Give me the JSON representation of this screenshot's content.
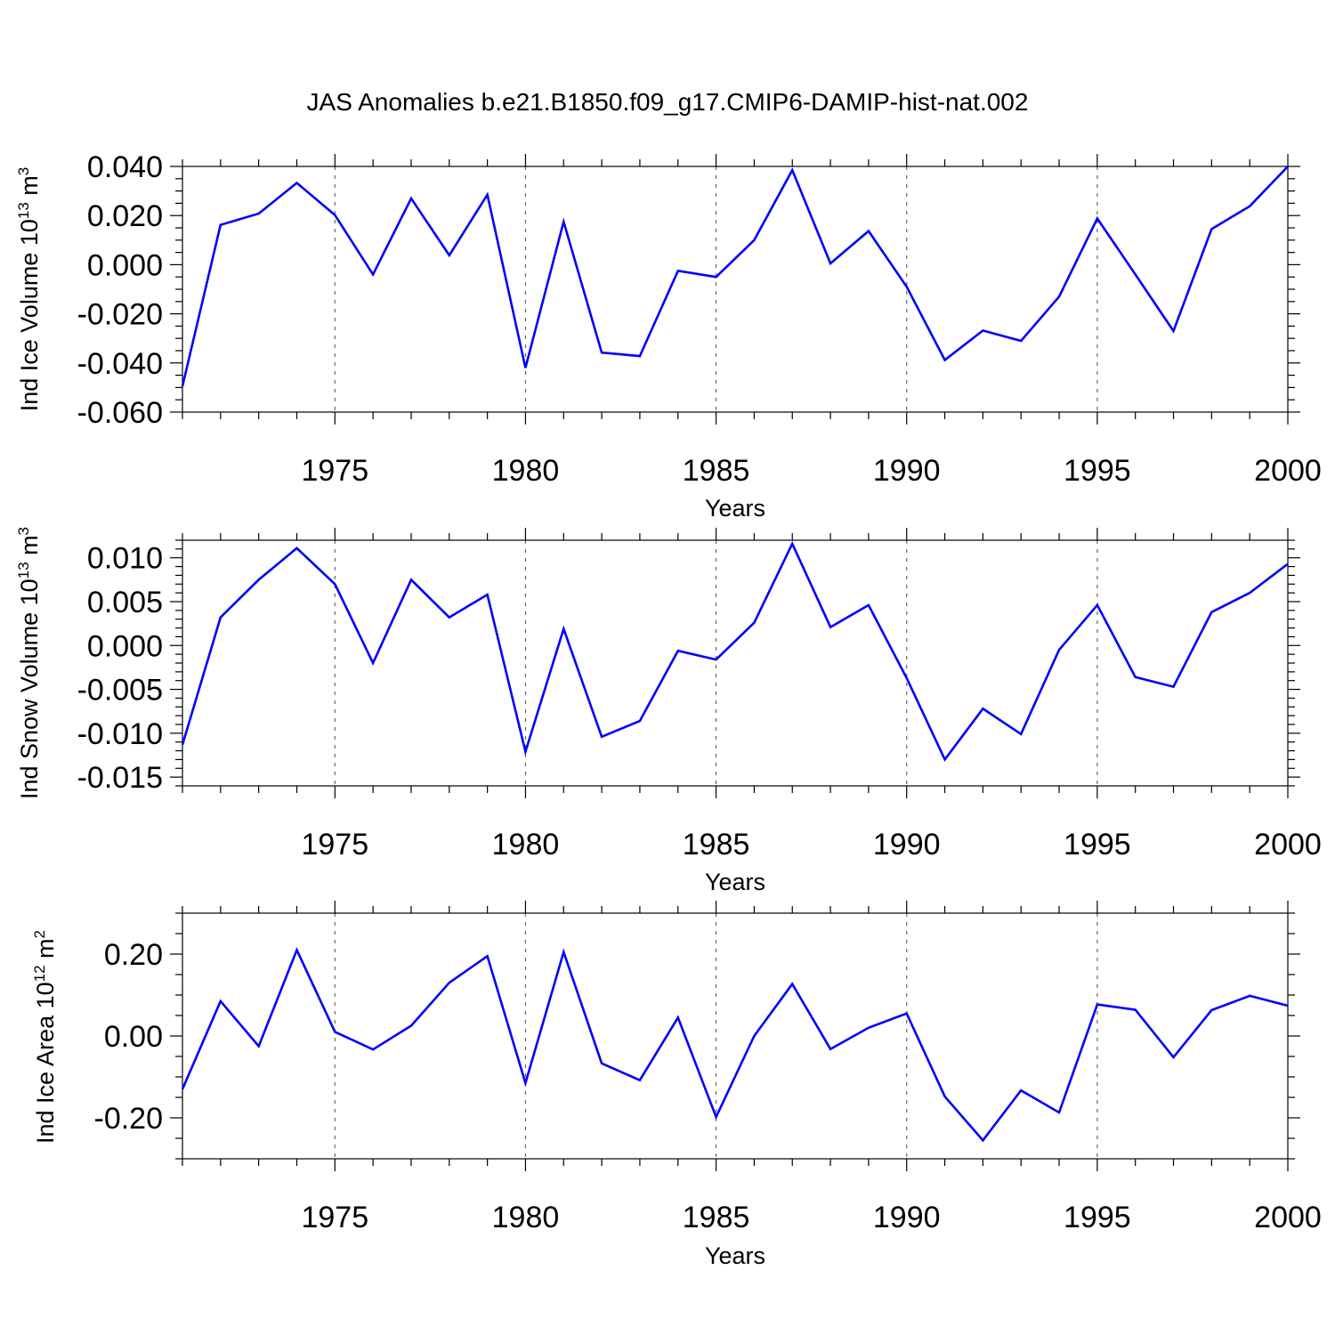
{
  "figure_title": "JAS Anomalies b.e21.B1850.f09_g17.CMIP6-DAMIP-hist-nat.002",
  "colors": {
    "line": "#0000ff",
    "grid": "#666666",
    "axis": "#000000"
  },
  "chart_data": [
    {
      "type": "line",
      "title": "",
      "ylabel": "Ind Ice Volume 10",
      "ylabel_exp": "13",
      "ylabel_unit": " m",
      "ylabel_unit_exp": "3",
      "xlabel": "Years",
      "xlim": [
        1971,
        2000
      ],
      "ylim": [
        -0.06,
        0.04
      ],
      "yticks": [
        -0.06,
        -0.04,
        -0.02,
        0.0,
        0.02,
        0.04
      ],
      "ytick_labels": [
        "-0.060",
        "-0.040",
        "-0.020",
        "0.000",
        "0.020",
        "0.040"
      ],
      "yminor_step": 0.005,
      "xticks": [
        1975,
        1980,
        1985,
        1990,
        1995,
        2000
      ],
      "xtick_labels": [
        "1975",
        "1980",
        "1985",
        "1990",
        "1995",
        "2000"
      ],
      "grid_x": [
        1975,
        1980,
        1985,
        1990,
        1995
      ],
      "x": [
        1971,
        1972,
        1973,
        1974,
        1975,
        1976,
        1977,
        1978,
        1979,
        1980,
        1981,
        1982,
        1983,
        1984,
        1985,
        1986,
        1987,
        1988,
        1989,
        1990,
        1991,
        1992,
        1993,
        1994,
        1995,
        1996,
        1997,
        1998,
        1999,
        2000
      ],
      "series": [
        {
          "name": "Ind Ice Volume",
          "values": [
            -0.0495,
            0.0162,
            0.0208,
            0.0333,
            0.0202,
            -0.004,
            0.027,
            0.0038,
            0.0285,
            -0.042,
            0.0175,
            -0.0358,
            -0.0372,
            -0.0025,
            -0.005,
            0.01,
            0.0385,
            0.0005,
            0.0137,
            -0.009,
            -0.0388,
            -0.0268,
            -0.031,
            -0.013,
            0.0188,
            -0.004,
            -0.027,
            0.0145,
            0.0238,
            0.04
          ]
        }
      ]
    },
    {
      "type": "line",
      "title": "",
      "ylabel": "Ind Snow Volume 10",
      "ylabel_exp": "13",
      "ylabel_unit": " m",
      "ylabel_unit_exp": "3",
      "xlabel": "Years",
      "xlim": [
        1971,
        2000
      ],
      "ylim": [
        -0.016,
        0.012
      ],
      "yticks": [
        -0.015,
        -0.01,
        -0.005,
        0.0,
        0.005,
        0.01
      ],
      "ytick_labels": [
        "-0.015",
        "-0.010",
        "-0.005",
        "0.000",
        "0.005",
        "0.010"
      ],
      "yminor_step": 0.001,
      "xticks": [
        1975,
        1980,
        1985,
        1990,
        1995,
        2000
      ],
      "xtick_labels": [
        "1975",
        "1980",
        "1985",
        "1990",
        "1995",
        "2000"
      ],
      "grid_x": [
        1975,
        1980,
        1985,
        1990,
        1995
      ],
      "x": [
        1971,
        1972,
        1973,
        1974,
        1975,
        1976,
        1977,
        1978,
        1979,
        1980,
        1981,
        1982,
        1983,
        1984,
        1985,
        1986,
        1987,
        1988,
        1989,
        1990,
        1991,
        1992,
        1993,
        1994,
        1995,
        1996,
        1997,
        1998,
        1999,
        2000
      ],
      "series": [
        {
          "name": "Ind Snow Volume",
          "values": [
            -0.0113,
            0.0032,
            0.0075,
            0.0111,
            0.007,
            -0.002,
            0.0075,
            0.0032,
            0.0058,
            -0.0121,
            0.0019,
            -0.0104,
            -0.0086,
            -0.0006,
            -0.0016,
            0.0026,
            0.0116,
            0.0021,
            0.0046,
            -0.0037,
            -0.013,
            -0.0072,
            -0.0101,
            -0.0005,
            0.0046,
            -0.0036,
            -0.0047,
            0.0038,
            0.006,
            0.0093
          ]
        }
      ]
    },
    {
      "type": "line",
      "title": "",
      "ylabel": "Ind Ice Area 10",
      "ylabel_exp": "12",
      "ylabel_unit": " m",
      "ylabel_unit_exp": "2",
      "xlabel": "Years",
      "xlim": [
        1971,
        2000
      ],
      "ylim": [
        -0.3,
        0.3
      ],
      "yticks": [
        -0.2,
        0.0,
        0.2
      ],
      "ytick_labels": [
        "-0.20",
        "0.00",
        "0.20"
      ],
      "yminor_step": 0.05,
      "xticks": [
        1975,
        1980,
        1985,
        1990,
        1995,
        2000
      ],
      "xtick_labels": [
        "1975",
        "1980",
        "1985",
        "1990",
        "1995",
        "2000"
      ],
      "grid_x": [
        1975,
        1980,
        1985,
        1990,
        1995
      ],
      "x": [
        1971,
        1972,
        1973,
        1974,
        1975,
        1976,
        1977,
        1978,
        1979,
        1980,
        1981,
        1982,
        1983,
        1984,
        1985,
        1986,
        1987,
        1988,
        1989,
        1990,
        1991,
        1992,
        1993,
        1994,
        1995,
        1996,
        1997,
        1998,
        1999,
        2000
      ],
      "series": [
        {
          "name": "Ind Ice Area",
          "values": [
            -0.13,
            0.085,
            -0.025,
            0.21,
            0.01,
            -0.033,
            0.025,
            0.13,
            0.195,
            -0.115,
            0.205,
            -0.067,
            -0.108,
            0.045,
            -0.198,
            0.0,
            0.127,
            -0.032,
            0.02,
            0.055,
            -0.148,
            -0.255,
            -0.133,
            -0.187,
            0.077,
            0.064,
            -0.052,
            0.063,
            0.098,
            0.074
          ]
        }
      ]
    }
  ]
}
